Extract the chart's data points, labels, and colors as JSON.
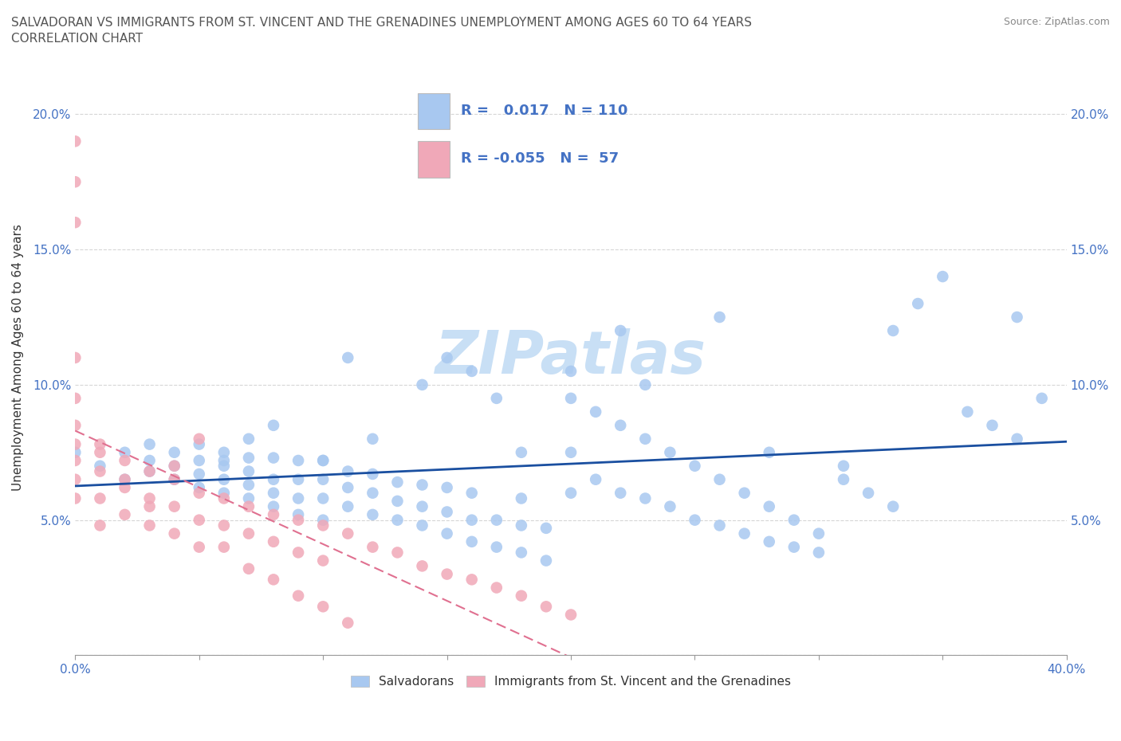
{
  "title_line1": "SALVADORAN VS IMMIGRANTS FROM ST. VINCENT AND THE GRENADINES UNEMPLOYMENT AMONG AGES 60 TO 64 YEARS",
  "title_line2": "CORRELATION CHART",
  "source": "Source: ZipAtlas.com",
  "ylabel": "Unemployment Among Ages 60 to 64 years",
  "xlim": [
    0.0,
    0.4
  ],
  "ylim": [
    0.0,
    0.22
  ],
  "xticks": [
    0.0,
    0.05,
    0.1,
    0.15,
    0.2,
    0.25,
    0.3,
    0.35,
    0.4
  ],
  "yticks": [
    0.0,
    0.05,
    0.1,
    0.15,
    0.2
  ],
  "blue_R": 0.017,
  "blue_N": 110,
  "pink_R": -0.055,
  "pink_N": 57,
  "blue_color": "#a8c8f0",
  "pink_color": "#f0a8b8",
  "blue_line_color": "#1a4fa0",
  "pink_line_color": "#e07090",
  "watermark": "ZIPatlas",
  "watermark_color": "#c8dff5",
  "legend_label_blue": "Salvadorans",
  "legend_label_pink": "Immigrants from St. Vincent and the Grenadines",
  "blue_scatter_x": [
    0.0,
    0.01,
    0.02,
    0.02,
    0.03,
    0.03,
    0.03,
    0.04,
    0.04,
    0.04,
    0.05,
    0.05,
    0.05,
    0.05,
    0.06,
    0.06,
    0.06,
    0.06,
    0.07,
    0.07,
    0.07,
    0.07,
    0.07,
    0.08,
    0.08,
    0.08,
    0.08,
    0.09,
    0.09,
    0.09,
    0.09,
    0.1,
    0.1,
    0.1,
    0.1,
    0.11,
    0.11,
    0.11,
    0.12,
    0.12,
    0.12,
    0.13,
    0.13,
    0.13,
    0.14,
    0.14,
    0.14,
    0.15,
    0.15,
    0.15,
    0.16,
    0.16,
    0.16,
    0.17,
    0.17,
    0.18,
    0.18,
    0.18,
    0.19,
    0.19,
    0.2,
    0.2,
    0.2,
    0.21,
    0.21,
    0.22,
    0.22,
    0.23,
    0.23,
    0.24,
    0.24,
    0.25,
    0.25,
    0.26,
    0.26,
    0.27,
    0.27,
    0.28,
    0.28,
    0.29,
    0.29,
    0.3,
    0.3,
    0.31,
    0.31,
    0.32,
    0.33,
    0.34,
    0.35,
    0.36,
    0.37,
    0.38,
    0.39,
    0.14,
    0.18,
    0.22,
    0.26,
    0.1,
    0.15,
    0.2,
    0.08,
    0.12,
    0.17,
    0.23,
    0.28,
    0.33,
    0.38,
    0.06,
    0.11,
    0.16
  ],
  "blue_scatter_y": [
    0.075,
    0.07,
    0.065,
    0.075,
    0.068,
    0.072,
    0.078,
    0.065,
    0.07,
    0.075,
    0.062,
    0.067,
    0.072,
    0.078,
    0.06,
    0.065,
    0.07,
    0.075,
    0.058,
    0.063,
    0.068,
    0.073,
    0.08,
    0.055,
    0.06,
    0.065,
    0.073,
    0.052,
    0.058,
    0.065,
    0.072,
    0.05,
    0.058,
    0.065,
    0.072,
    0.055,
    0.062,
    0.068,
    0.052,
    0.06,
    0.067,
    0.05,
    0.057,
    0.064,
    0.048,
    0.055,
    0.063,
    0.045,
    0.053,
    0.062,
    0.042,
    0.05,
    0.06,
    0.04,
    0.05,
    0.038,
    0.048,
    0.058,
    0.035,
    0.047,
    0.095,
    0.075,
    0.06,
    0.09,
    0.065,
    0.085,
    0.06,
    0.08,
    0.058,
    0.075,
    0.055,
    0.07,
    0.05,
    0.065,
    0.048,
    0.06,
    0.045,
    0.055,
    0.042,
    0.05,
    0.04,
    0.045,
    0.038,
    0.07,
    0.065,
    0.06,
    0.055,
    0.13,
    0.14,
    0.09,
    0.085,
    0.08,
    0.095,
    0.1,
    0.075,
    0.12,
    0.125,
    0.072,
    0.11,
    0.105,
    0.085,
    0.08,
    0.095,
    0.1,
    0.075,
    0.12,
    0.125,
    0.072,
    0.11,
    0.105
  ],
  "pink_scatter_x": [
    0.0,
    0.0,
    0.0,
    0.0,
    0.0,
    0.0,
    0.0,
    0.0,
    0.0,
    0.0,
    0.01,
    0.01,
    0.01,
    0.01,
    0.02,
    0.02,
    0.02,
    0.03,
    0.03,
    0.03,
    0.04,
    0.04,
    0.04,
    0.05,
    0.05,
    0.05,
    0.06,
    0.06,
    0.07,
    0.07,
    0.08,
    0.08,
    0.09,
    0.09,
    0.1,
    0.1,
    0.11,
    0.12,
    0.13,
    0.14,
    0.15,
    0.16,
    0.17,
    0.18,
    0.19,
    0.2,
    0.01,
    0.02,
    0.03,
    0.04,
    0.05,
    0.06,
    0.07,
    0.08,
    0.09,
    0.1,
    0.11
  ],
  "pink_scatter_y": [
    0.19,
    0.175,
    0.16,
    0.11,
    0.095,
    0.085,
    0.078,
    0.072,
    0.065,
    0.058,
    0.075,
    0.068,
    0.058,
    0.048,
    0.072,
    0.062,
    0.052,
    0.068,
    0.058,
    0.048,
    0.065,
    0.055,
    0.045,
    0.06,
    0.05,
    0.04,
    0.058,
    0.048,
    0.055,
    0.045,
    0.052,
    0.042,
    0.05,
    0.038,
    0.048,
    0.035,
    0.045,
    0.04,
    0.038,
    0.033,
    0.03,
    0.028,
    0.025,
    0.022,
    0.018,
    0.015,
    0.078,
    0.065,
    0.055,
    0.07,
    0.08,
    0.04,
    0.032,
    0.028,
    0.022,
    0.018,
    0.012
  ]
}
